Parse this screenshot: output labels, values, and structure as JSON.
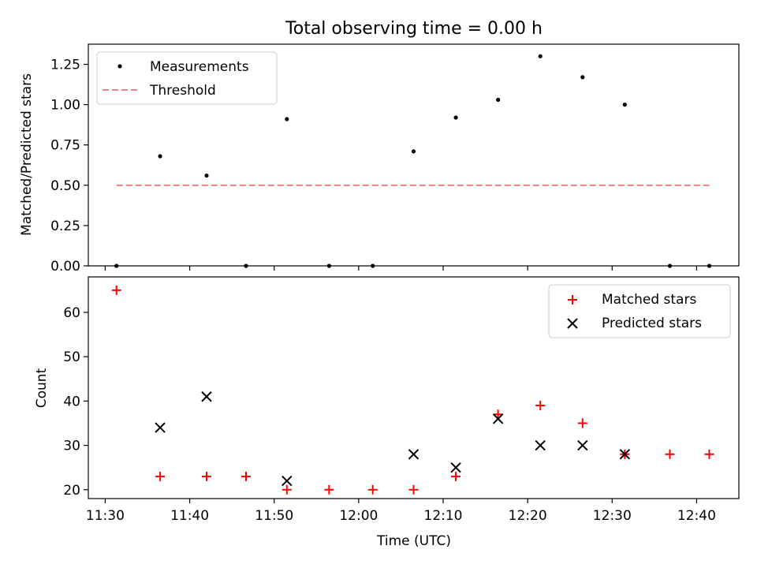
{
  "title": "Total observing time = 0.00 h",
  "chart_data": [
    {
      "type": "scatter",
      "ylabel": "Matched/Predicted stars",
      "xlim": [
        "11:28",
        "12:45"
      ],
      "ylim": [
        0,
        1.375
      ],
      "yticks": [
        "0.00",
        "0.25",
        "0.50",
        "0.75",
        "1.00",
        "1.25"
      ],
      "legend_position": "top-left",
      "series": [
        {
          "name": "Measurements",
          "marker": "dot",
          "color": "#000000",
          "x": [
            "11:31:20",
            "11:36:30",
            "11:42:00",
            "11:46:40",
            "11:51:30",
            "11:56:30",
            "12:01:40",
            "12:06:30",
            "12:11:30",
            "12:16:30",
            "12:21:30",
            "12:26:30",
            "12:31:30",
            "12:36:50",
            "12:41:30"
          ],
          "y": [
            0.0,
            0.68,
            0.56,
            0.0,
            0.91,
            0.0,
            0.0,
            0.71,
            0.92,
            1.03,
            1.3,
            1.17,
            1.0,
            0.0,
            0.0
          ]
        },
        {
          "name": "Threshold",
          "marker": "dashed-line",
          "color": "#f08080",
          "x": [
            "11:31:20",
            "12:41:30"
          ],
          "y": [
            0.5,
            0.5
          ]
        }
      ]
    },
    {
      "type": "scatter",
      "xlabel": "Time (UTC)",
      "ylabel": "Count",
      "xlim": [
        "11:28",
        "12:45"
      ],
      "ylim": [
        18,
        68
      ],
      "xticks": [
        "11:30",
        "11:40",
        "11:50",
        "12:00",
        "12:10",
        "12:20",
        "12:30",
        "12:40"
      ],
      "yticks": [
        "20",
        "30",
        "40",
        "50",
        "60"
      ],
      "legend_position": "top-right",
      "series": [
        {
          "name": "Matched stars",
          "marker": "plus",
          "color": "#ff0000",
          "x": [
            "11:31:20",
            "11:36:30",
            "11:42:00",
            "11:46:40",
            "11:51:30",
            "11:56:30",
            "12:01:40",
            "12:06:30",
            "12:11:30",
            "12:16:30",
            "12:21:30",
            "12:26:30",
            "12:31:30",
            "12:36:50",
            "12:41:30"
          ],
          "y": [
            65,
            23,
            23,
            23,
            20,
            20,
            20,
            20,
            23,
            37,
            39,
            35,
            28,
            28,
            28
          ]
        },
        {
          "name": "Predicted stars",
          "marker": "x",
          "color": "#000000",
          "x": [
            "11:36:30",
            "11:42:00",
            "11:51:30",
            "12:06:30",
            "12:11:30",
            "12:16:30",
            "12:21:30",
            "12:26:30",
            "12:31:30"
          ],
          "y": [
            34,
            41,
            22,
            28,
            25,
            36,
            30,
            30,
            28
          ]
        }
      ]
    }
  ]
}
